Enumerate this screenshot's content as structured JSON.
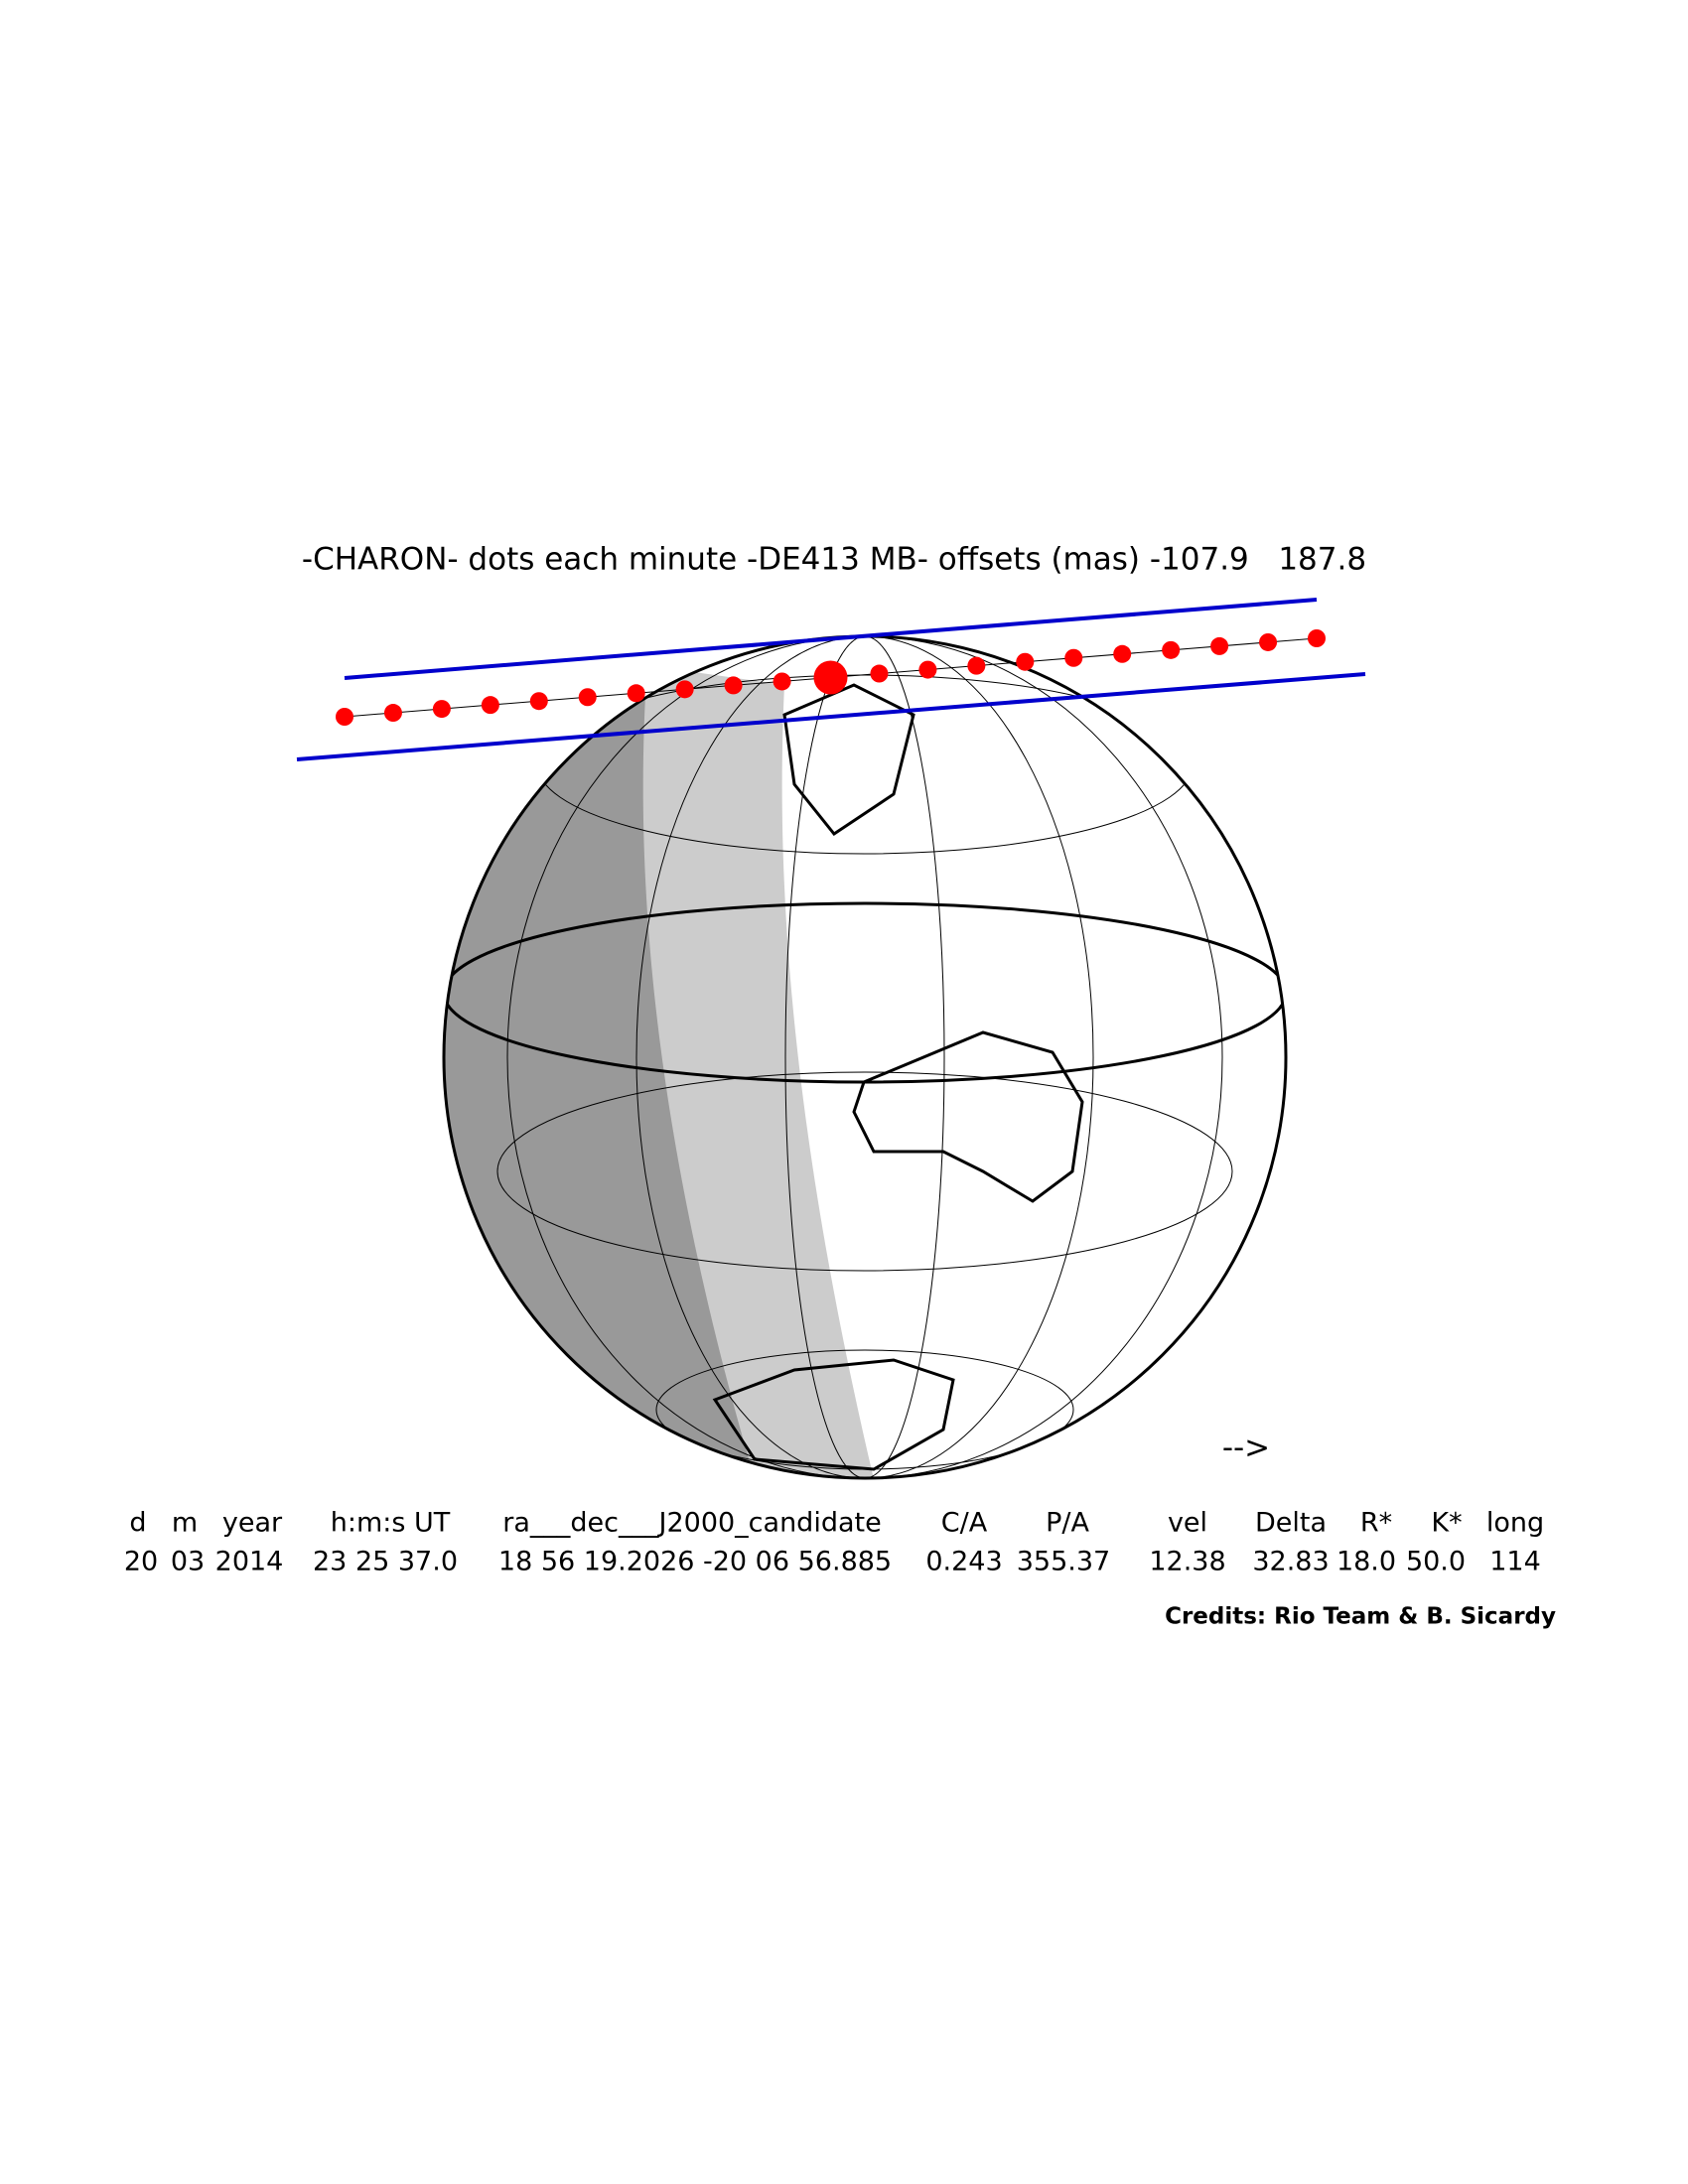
{
  "title": "-CHARON- dots each minute -DE413 MB- offsets (mas) -107.9   187.8",
  "direction": "-->",
  "table": {
    "header": [
      "d",
      "m",
      "year",
      "h:m:s UT",
      "ra___dec___J2000_candidate",
      "C/A",
      "P/A",
      "vel",
      "Delta",
      "R*",
      "K*",
      "long"
    ],
    "values": [
      "20",
      "03",
      "2014",
      "23 25 37.0",
      "18 56 19.2026 -20 06 56.885",
      "0.243",
      "355.37",
      "12.38",
      "32.83",
      "18.0",
      "50.0",
      "114"
    ]
  },
  "credits": "Credits: Rio Team & B. Sicardy"
}
